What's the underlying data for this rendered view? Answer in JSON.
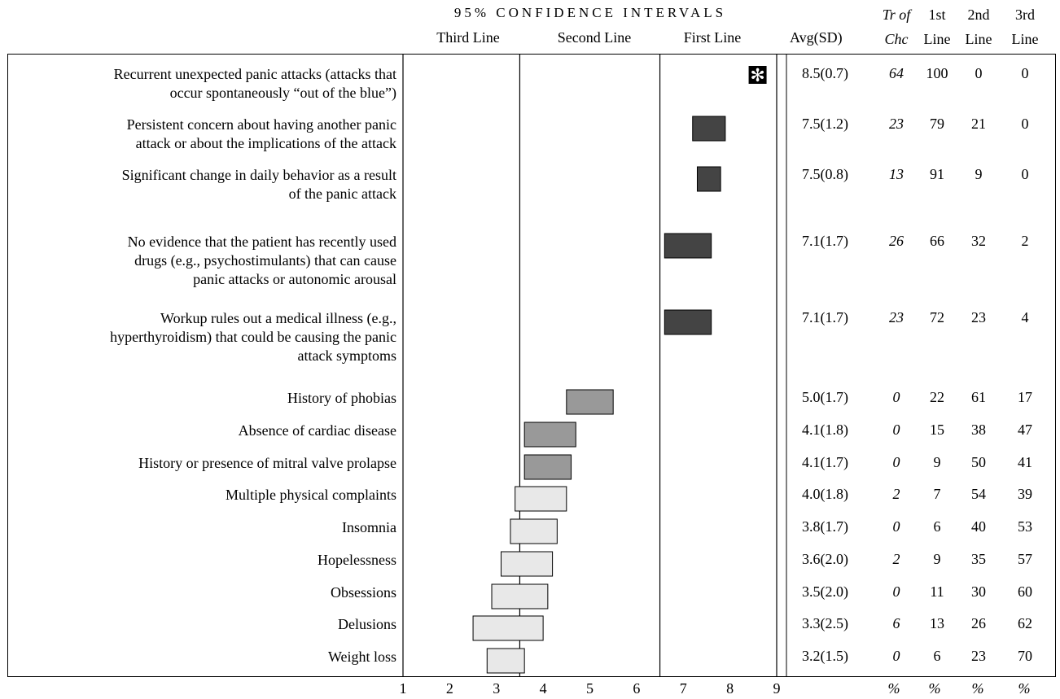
{
  "header": {
    "ci_title": "95% CONFIDENCE INTERVALS",
    "third_line": "Third Line",
    "second_line": "Second Line",
    "first_line": "First Line",
    "avg_sd": "Avg(SD)",
    "tr_of_1": "Tr of",
    "tr_of_2": "Chc",
    "first_1": "1st",
    "first_2": "Line",
    "second_1": "2nd",
    "second_2": "Line",
    "third_1": "3rd",
    "third_2": "Line"
  },
  "axis": {
    "ticks": [
      "1",
      "2",
      "3",
      "4",
      "5",
      "6",
      "7",
      "8",
      "9"
    ],
    "pct_symbols": [
      "%",
      "%",
      "%",
      "%"
    ]
  },
  "colors": {
    "first_line": "#444444",
    "second_line": "#999999",
    "third_line": "#e8e8e8",
    "star_bg": "#000000",
    "star_fg": "#ffffff"
  },
  "chart_data": {
    "type": "table",
    "xlim": [
      1,
      9
    ],
    "bands": [
      3.5,
      6.5
    ],
    "rows": [
      {
        "label_lines": [
          "Recurrent unexpected panic attacks (attacks that",
          "occur spontaneously “out of the blue”)"
        ],
        "ci": [
          8.4,
          8.7
        ],
        "star": true,
        "class": "first",
        "avg": "8.5(0.7)",
        "tr": "64",
        "first": "100",
        "second": "0",
        "third": "0"
      },
      {
        "label_lines": [
          "Persistent concern about having another panic",
          "attack or about the implications of the attack"
        ],
        "ci": [
          7.2,
          7.9
        ],
        "star": false,
        "class": "first",
        "avg": "7.5(1.2)",
        "tr": "23",
        "first": "79",
        "second": "21",
        "third": "0"
      },
      {
        "label_lines": [
          "Significant change in daily behavior as a result",
          "of the panic attack"
        ],
        "ci": [
          7.3,
          7.8
        ],
        "star": false,
        "class": "first",
        "avg": "7.5(0.8)",
        "tr": "13",
        "first": "91",
        "second": "9",
        "third": "0"
      },
      {
        "label_lines": [
          "No evidence that the patient has recently used",
          "drugs (e.g., psychostimulants) that can cause",
          "panic attacks or autonomic arousal"
        ],
        "ci": [
          6.6,
          7.6
        ],
        "star": false,
        "class": "first",
        "avg": "7.1(1.7)",
        "tr": "26",
        "first": "66",
        "second": "32",
        "third": "2"
      },
      {
        "label_lines": [
          "Workup rules out a medical illness (e.g.,",
          "hyperthyroidism) that could be causing the panic",
          "attack symptoms"
        ],
        "ci": [
          6.6,
          7.6
        ],
        "star": false,
        "class": "first",
        "avg": "7.1(1.7)",
        "tr": "23",
        "first": "72",
        "second": "23",
        "third": "4"
      },
      {
        "label_lines": [
          "History of phobias"
        ],
        "ci": [
          4.5,
          5.5
        ],
        "star": false,
        "class": "second",
        "avg": "5.0(1.7)",
        "tr": "0",
        "first": "22",
        "second": "61",
        "third": "17"
      },
      {
        "label_lines": [
          "Absence of cardiac disease"
        ],
        "ci": [
          3.6,
          4.7
        ],
        "star": false,
        "class": "second",
        "avg": "4.1(1.8)",
        "tr": "0",
        "first": "15",
        "second": "38",
        "third": "47"
      },
      {
        "label_lines": [
          "History or presence of mitral valve prolapse"
        ],
        "ci": [
          3.6,
          4.6
        ],
        "star": false,
        "class": "second",
        "avg": "4.1(1.7)",
        "tr": "0",
        "first": "9",
        "second": "50",
        "third": "41"
      },
      {
        "label_lines": [
          "Multiple physical complaints"
        ],
        "ci": [
          3.4,
          4.5
        ],
        "star": false,
        "class": "third",
        "avg": "4.0(1.8)",
        "tr": "2",
        "first": "7",
        "second": "54",
        "third": "39"
      },
      {
        "label_lines": [
          "Insomnia"
        ],
        "ci": [
          3.3,
          4.3
        ],
        "star": false,
        "class": "third",
        "avg": "3.8(1.7)",
        "tr": "0",
        "first": "6",
        "second": "40",
        "third": "53"
      },
      {
        "label_lines": [
          "Hopelessness"
        ],
        "ci": [
          3.1,
          4.2
        ],
        "star": false,
        "class": "third",
        "avg": "3.6(2.0)",
        "tr": "2",
        "first": "9",
        "second": "35",
        "third": "57"
      },
      {
        "label_lines": [
          "Obsessions"
        ],
        "ci": [
          2.9,
          4.1
        ],
        "star": false,
        "class": "third",
        "avg": "3.5(2.0)",
        "tr": "0",
        "first": "11",
        "second": "30",
        "third": "60"
      },
      {
        "label_lines": [
          "Delusions"
        ],
        "ci": [
          2.5,
          4.0
        ],
        "star": false,
        "class": "third",
        "avg": "3.3(2.5)",
        "tr": "6",
        "first": "13",
        "second": "26",
        "third": "62"
      },
      {
        "label_lines": [
          "Weight loss"
        ],
        "ci": [
          2.8,
          3.6
        ],
        "star": false,
        "class": "third",
        "avg": "3.2(1.5)",
        "tr": "0",
        "first": "6",
        "second": "23",
        "third": "70"
      }
    ]
  }
}
